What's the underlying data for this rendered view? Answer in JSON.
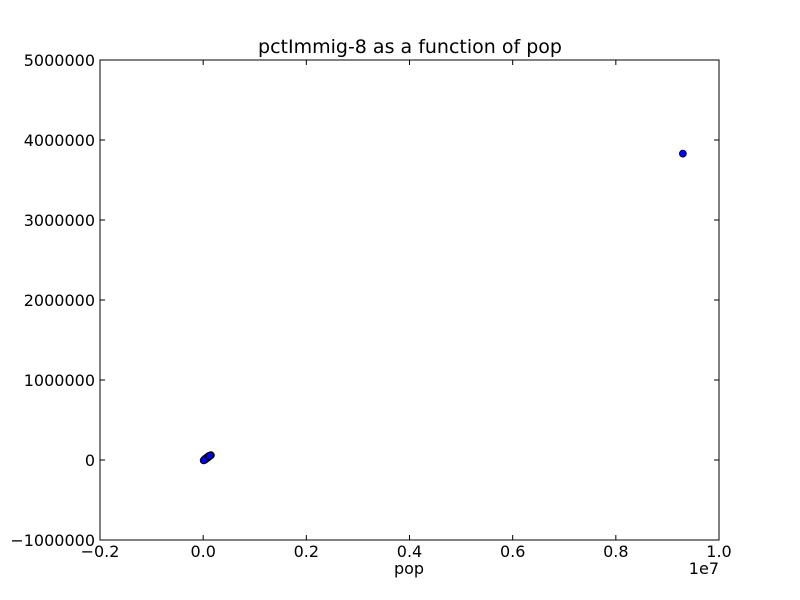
{
  "chart_data": {
    "type": "scatter",
    "title": "pctImmig-8 as a function of pop",
    "xlabel": "pop",
    "ylabel": "",
    "x_offset_label": "1e7",
    "x_scale": 10000000,
    "xlim": [
      -2000000,
      10000000
    ],
    "ylim": [
      -1000000,
      5000000
    ],
    "x_ticks": [
      -2000000,
      0,
      2000000,
      4000000,
      6000000,
      8000000,
      10000000
    ],
    "x_tick_labels": [
      "−0.2",
      "0.0",
      "0.2",
      "0.4",
      "0.6",
      "0.8",
      "1.0"
    ],
    "y_ticks": [
      -1000000,
      0,
      1000000,
      2000000,
      3000000,
      4000000,
      5000000
    ],
    "y_tick_labels": [
      "−1000000",
      "0",
      "1000000",
      "2000000",
      "3000000",
      "4000000",
      "5000000"
    ],
    "grid": false,
    "marker_color": "#0000ff",
    "marker_edge_color": "#000000",
    "series": [
      {
        "x": [
          9300000,
          40000,
          60000,
          80000,
          100000,
          120000,
          150000,
          30000,
          50000,
          70000,
          90000,
          110000,
          130000,
          20000,
          45000,
          65000,
          85000,
          105000,
          125000,
          10000
        ],
        "y": [
          3830000,
          5000,
          15000,
          25000,
          35000,
          45000,
          60000,
          10000,
          20000,
          30000,
          40000,
          50000,
          55000,
          2000,
          12000,
          22000,
          32000,
          42000,
          52000,
          -5000
        ]
      }
    ]
  }
}
